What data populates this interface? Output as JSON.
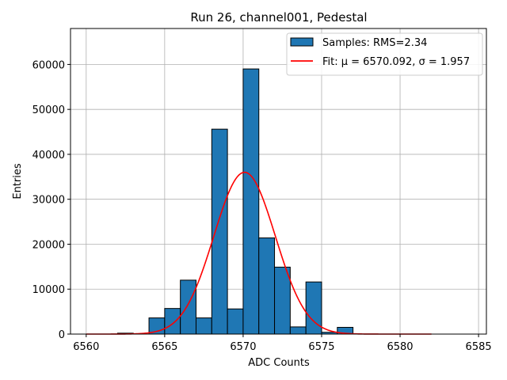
{
  "chart_data": {
    "type": "bar",
    "title": "Run 26, channel001, Pedestal",
    "xlabel": "ADC Counts",
    "ylabel": "Entries",
    "xlim": [
      6559,
      6585.5
    ],
    "ylim": [
      0,
      68000
    ],
    "xticks": [
      6560,
      6565,
      6570,
      6575,
      6580,
      6585
    ],
    "yticks": [
      0,
      10000,
      20000,
      30000,
      40000,
      50000,
      60000
    ],
    "grid": true,
    "legend_position": "top-right",
    "bin_width": 1,
    "bins": [
      {
        "x": 6562,
        "value": 200
      },
      {
        "x": 6564,
        "value": 3600
      },
      {
        "x": 6565,
        "value": 5700
      },
      {
        "x": 6566,
        "value": 12000
      },
      {
        "x": 6567,
        "value": 3600
      },
      {
        "x": 6568,
        "value": 45600
      },
      {
        "x": 6569,
        "value": 5600
      },
      {
        "x": 6570,
        "value": 59000
      },
      {
        "x": 6571,
        "value": 21400
      },
      {
        "x": 6572,
        "value": 14900
      },
      {
        "x": 6573,
        "value": 1600
      },
      {
        "x": 6574,
        "value": 11600
      },
      {
        "x": 6575,
        "value": 400
      },
      {
        "x": 6576,
        "value": 1500
      }
    ],
    "histogram_color": "#1f77b4",
    "fit": {
      "mu": 6570.092,
      "sigma": 1.957,
      "amplitude": 36000,
      "x_range": [
        6560,
        6582
      ],
      "color": "#ff0000"
    },
    "legend": [
      {
        "label": "Samples: RMS=2.34",
        "kind": "patch",
        "color": "#1f77b4"
      },
      {
        "label": "Fit: μ = 6570.092, σ = 1.957",
        "kind": "line",
        "color": "#ff0000"
      }
    ]
  }
}
